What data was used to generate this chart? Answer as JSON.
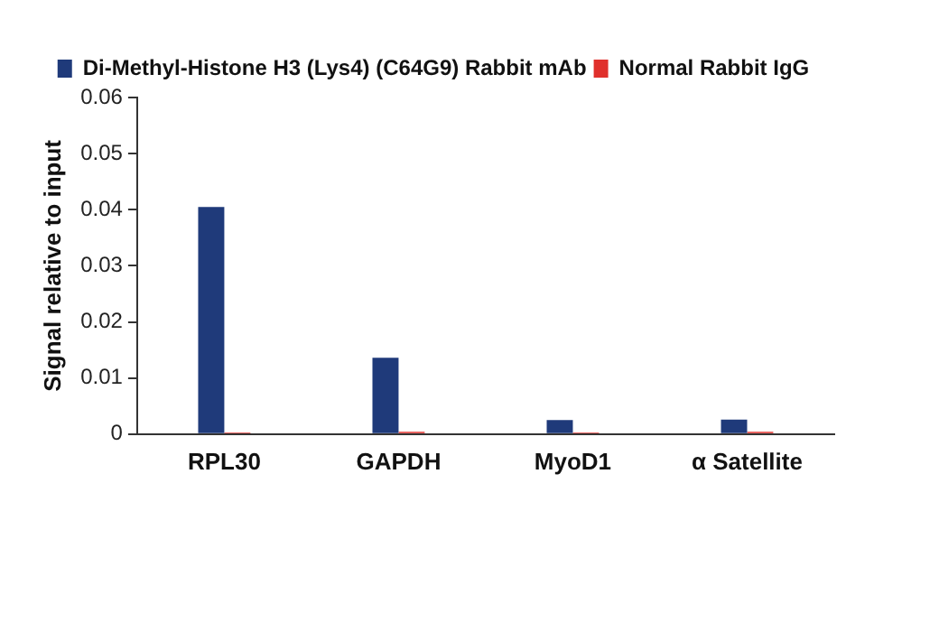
{
  "chart_data": {
    "type": "bar",
    "ylabel": "Signal relative to input",
    "categories": [
      "RPL30",
      "GAPDH",
      "MyoD1",
      "α Satellite"
    ],
    "series": [
      {
        "name": "Di-Methyl-Histone H3 (Lys4) (C64G9) Rabbit mAb",
        "color": "#1f3a7a",
        "values": [
          0.0405,
          0.0136,
          0.0025,
          0.0026
        ]
      },
      {
        "name": "Normal Rabbit IgG",
        "color": "#e0302c",
        "values": [
          0.0003,
          0.0004,
          0.0003,
          0.0004
        ]
      }
    ],
    "ylim": [
      0,
      0.06
    ],
    "yticks": [
      0,
      0.01,
      0.02,
      0.03,
      0.04,
      0.05,
      0.06
    ],
    "grid": false,
    "legend": "top"
  }
}
